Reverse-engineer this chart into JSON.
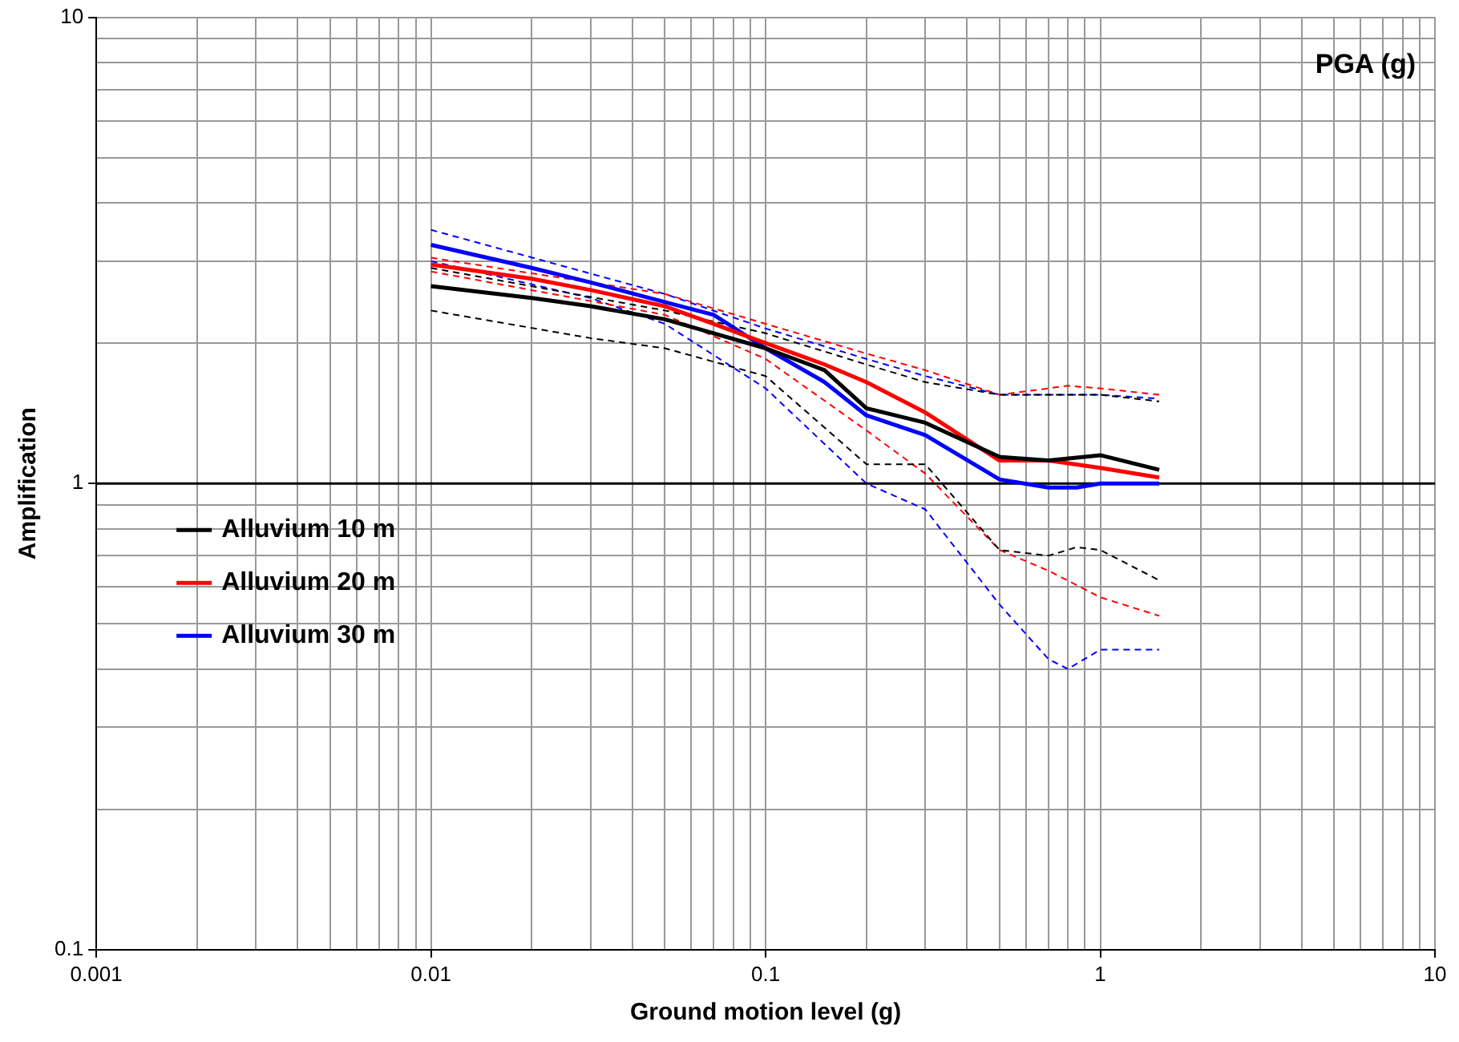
{
  "chart_data": {
    "type": "line",
    "xlabel": "Ground motion level (g)",
    "ylabel": "Amplification",
    "log": "xy",
    "xlim": [
      0.001,
      10
    ],
    "ylim": [
      0.1,
      10
    ],
    "xticks": [
      0.001,
      {
        "value": 0.002,
        "label": null
      },
      {
        "value": 0.003,
        "label": null
      },
      {
        "value": 0.004,
        "label": null
      },
      {
        "value": 0.005,
        "label": null
      },
      {
        "value": 0.006,
        "label": null
      },
      {
        "value": 0.007,
        "label": null
      },
      {
        "value": 0.008,
        "label": null
      },
      {
        "value": 0.009,
        "label": null
      },
      0.01,
      {
        "value": 0.02,
        "label": null
      },
      {
        "value": 0.03,
        "label": null
      },
      {
        "value": 0.04,
        "label": null
      },
      {
        "value": 0.05,
        "label": null
      },
      {
        "value": 0.06,
        "label": null
      },
      {
        "value": 0.07,
        "label": null
      },
      {
        "value": 0.08,
        "label": null
      },
      {
        "value": 0.09,
        "label": null
      },
      0.1,
      {
        "value": 0.2,
        "label": null
      },
      {
        "value": 0.3,
        "label": null
      },
      {
        "value": 0.4,
        "label": null
      },
      {
        "value": 0.5,
        "label": null
      },
      {
        "value": 0.6,
        "label": null
      },
      {
        "value": 0.7,
        "label": null
      },
      {
        "value": 0.8,
        "label": null
      },
      {
        "value": 0.9,
        "label": null
      },
      1,
      {
        "value": 2,
        "label": null
      },
      {
        "value": 3,
        "label": null
      },
      {
        "value": 4,
        "label": null
      },
      {
        "value": 5,
        "label": null
      },
      {
        "value": 6,
        "label": null
      },
      {
        "value": 7,
        "label": null
      },
      {
        "value": 8,
        "label": null
      },
      {
        "value": 9,
        "label": null
      },
      10
    ],
    "yticks": [
      0.1,
      {
        "value": 0.2,
        "label": null
      },
      {
        "value": 0.3,
        "label": null
      },
      {
        "value": 0.4,
        "label": null
      },
      {
        "value": 0.5,
        "label": null
      },
      {
        "value": 0.6,
        "label": null
      },
      {
        "value": 0.7,
        "label": null
      },
      {
        "value": 0.8,
        "label": null
      },
      {
        "value": 0.9,
        "label": null
      },
      1,
      {
        "value": 2,
        "label": null
      },
      {
        "value": 3,
        "label": null
      },
      {
        "value": 4,
        "label": null
      },
      {
        "value": 5,
        "label": null
      },
      {
        "value": 6,
        "label": null
      },
      {
        "value": 7,
        "label": null
      },
      {
        "value": 8,
        "label": null
      },
      {
        "value": 9,
        "label": null
      },
      10
    ],
    "grid": true,
    "legend": "left",
    "marker": "none",
    "annotations": [
      "PGA (g)"
    ],
    "ref_lines": [
      {
        "axis": "y",
        "value": 1,
        "color": "#000000"
      }
    ],
    "series": [
      {
        "name": "Alluvium 10 m",
        "color": "#000000",
        "line_style": "solid",
        "x": [
          0.01,
          0.02,
          0.03,
          0.05,
          0.07,
          0.1,
          0.15,
          0.2,
          0.3,
          0.5,
          0.7,
          1,
          1.5
        ],
        "values": [
          2.65,
          2.5,
          2.4,
          2.25,
          2.1,
          1.95,
          1.75,
          1.45,
          1.35,
          1.14,
          1.12,
          1.15,
          1.07
        ]
      },
      {
        "name": "Alluvium 20 m",
        "color": "#ff0000",
        "line_style": "solid",
        "x": [
          0.01,
          0.02,
          0.03,
          0.05,
          0.07,
          0.1,
          0.15,
          0.2,
          0.3,
          0.5,
          0.7,
          1,
          1.5
        ],
        "values": [
          2.95,
          2.75,
          2.6,
          2.4,
          2.2,
          2.0,
          1.8,
          1.65,
          1.42,
          1.12,
          1.12,
          1.08,
          1.03
        ]
      },
      {
        "name": "Alluvium 30 m",
        "color": "#0000ff",
        "line_style": "solid",
        "x": [
          0.01,
          0.02,
          0.03,
          0.05,
          0.07,
          0.1,
          0.15,
          0.2,
          0.3,
          0.5,
          0.7,
          0.85,
          1,
          1.5
        ],
        "values": [
          3.25,
          2.9,
          2.7,
          2.45,
          2.3,
          1.95,
          1.65,
          1.4,
          1.27,
          1.02,
          0.98,
          0.98,
          1.0,
          1.0
        ]
      },
      {
        "color": "#000000",
        "line_style": "dashed",
        "x": [
          0.01,
          0.05,
          0.1,
          0.2,
          0.3,
          0.5,
          1,
          1.5
        ],
        "values": [
          2.9,
          2.35,
          2.1,
          1.8,
          1.65,
          1.55,
          1.55,
          1.5
        ]
      },
      {
        "color": "#000000",
        "line_style": "dashed",
        "x": [
          0.01,
          0.03,
          0.05,
          0.1,
          0.2,
          0.3,
          0.5,
          0.7,
          0.85,
          1,
          1.5
        ],
        "values": [
          2.35,
          2.05,
          1.95,
          1.7,
          1.1,
          1.1,
          0.72,
          0.7,
          0.73,
          0.72,
          0.62
        ]
      },
      {
        "color": "#ff0000",
        "line_style": "dashed",
        "x": [
          0.01,
          0.05,
          0.1,
          0.2,
          0.3,
          0.5,
          0.8,
          1,
          1.5
        ],
        "values": [
          3.05,
          2.55,
          2.2,
          1.9,
          1.75,
          1.55,
          1.62,
          1.6,
          1.55
        ]
      },
      {
        "color": "#ff0000",
        "line_style": "dashed",
        "x": [
          0.01,
          0.05,
          0.1,
          0.2,
          0.3,
          0.5,
          0.7,
          1,
          1.5
        ],
        "values": [
          2.85,
          2.3,
          1.85,
          1.3,
          1.05,
          0.72,
          0.65,
          0.57,
          0.52
        ]
      },
      {
        "color": "#0000ff",
        "line_style": "dashed",
        "x": [
          0.01,
          0.05,
          0.1,
          0.2,
          0.3,
          0.5,
          1,
          1.5
        ],
        "values": [
          3.5,
          2.55,
          2.15,
          1.85,
          1.7,
          1.55,
          1.55,
          1.52
        ]
      },
      {
        "color": "#0000ff",
        "line_style": "dashed",
        "x": [
          0.01,
          0.03,
          0.05,
          0.1,
          0.2,
          0.3,
          0.5,
          0.7,
          0.8,
          1,
          1.5
        ],
        "values": [
          3.0,
          2.5,
          2.2,
          1.6,
          1.0,
          0.88,
          0.55,
          0.42,
          0.4,
          0.44,
          0.44
        ]
      }
    ]
  }
}
